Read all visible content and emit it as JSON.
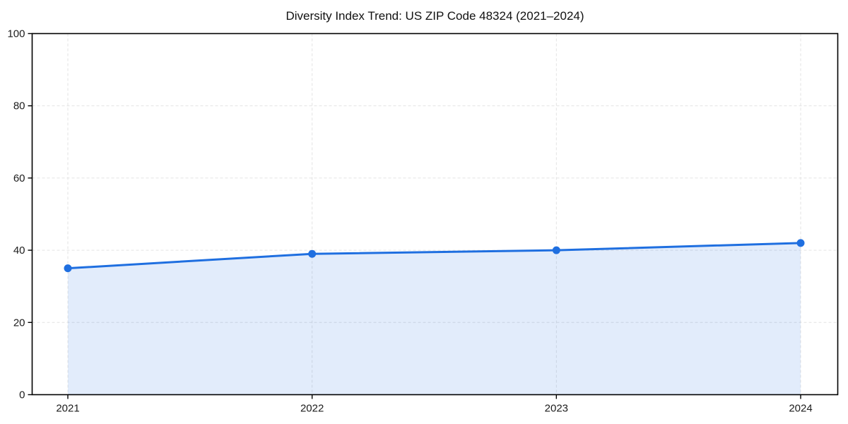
{
  "chart_data": {
    "type": "line",
    "title": "Diversity Index Trend: US ZIP Code 48324 (2021–2024)",
    "x": [
      2021,
      2022,
      2023,
      2024
    ],
    "series": [
      {
        "name": "Diversity Index",
        "values": [
          35,
          39,
          40,
          42
        ]
      }
    ],
    "xlabel": "",
    "ylabel": "",
    "ylim": [
      0,
      100
    ],
    "yticks": [
      0,
      20,
      40,
      60,
      80,
      100
    ],
    "grid": "dashed",
    "legend": "none",
    "area_fill": true,
    "marker": "circle",
    "colors": {
      "line": "#1f6fe0",
      "marker": "#1f6fe0",
      "area": "#1f6fe0",
      "grid": "#e3e3e3",
      "spine": "#000000",
      "tick_text": "#1c1c1c",
      "background": "#ffffff"
    }
  }
}
